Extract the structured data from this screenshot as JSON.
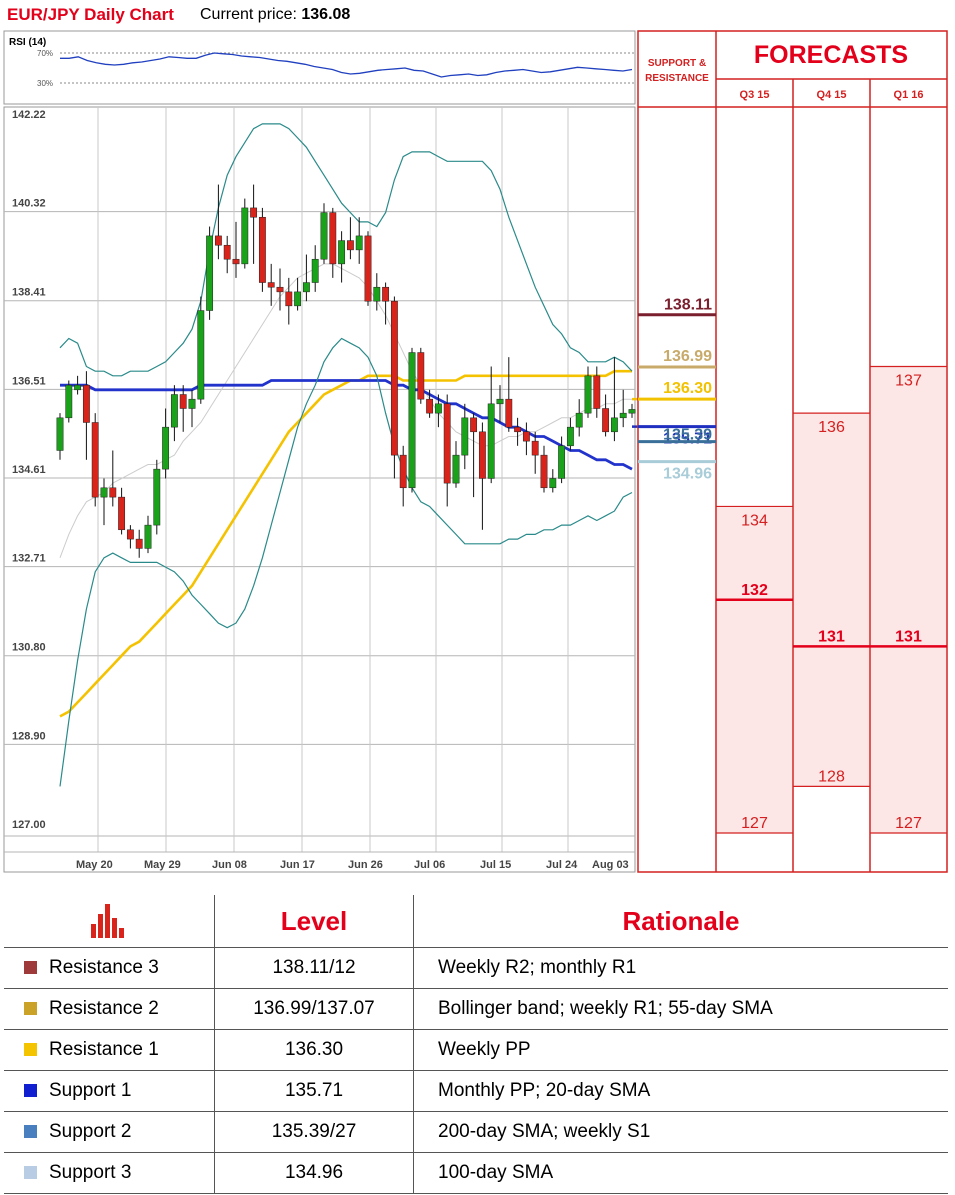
{
  "header": {
    "title": "EUR/JPY Daily Chart",
    "price_label": "Current price:",
    "price_value": "136.08"
  },
  "colors": {
    "brand_red": "#e3001b",
    "bull": "#1aa31a",
    "bear": "#d9241c",
    "sma200": "#f5c200",
    "sma20": "#2233cc",
    "bollinger": "#2a8a8a",
    "grid": "#b5b5b5",
    "forecast_fill": "#fde6e6"
  },
  "rsi": {
    "label": "RSI (14)",
    "levels": [
      "70%",
      "30%"
    ],
    "values": [
      63,
      63,
      65,
      60,
      57,
      55,
      54,
      55,
      57,
      58,
      60,
      62,
      65,
      64,
      63,
      63,
      67,
      70,
      69,
      68,
      66,
      65,
      64,
      62,
      60,
      59,
      57,
      55,
      52,
      50,
      48,
      44,
      42,
      43,
      45,
      47,
      48,
      49,
      50,
      47,
      46,
      42,
      38,
      40,
      41,
      42,
      40,
      41,
      44,
      46,
      47,
      48,
      46,
      44,
      45,
      47,
      49,
      51,
      50,
      49,
      48,
      47,
      46,
      48
    ]
  },
  "chart_data": {
    "type": "candlestick",
    "title": "EUR/JPY Daily Chart",
    "y_ticks": [
      "142.22",
      "140.32",
      "138.41",
      "136.51",
      "134.61",
      "132.71",
      "130.80",
      "128.90",
      "127.00"
    ],
    "ylim": [
      127.0,
      142.22
    ],
    "x_ticks": [
      "May 20",
      "May 29",
      "Jun 08",
      "Jun 17",
      "Jun 26",
      "Jul 06",
      "Jul 15",
      "Jul 24",
      "Aug 03"
    ],
    "candles": [
      [
        135.2,
        135.9,
        136.0,
        135.0
      ],
      [
        135.9,
        136.6,
        136.7,
        135.8
      ],
      [
        136.5,
        136.6,
        136.8,
        136.4
      ],
      [
        136.6,
        135.8,
        136.9,
        135.0
      ],
      [
        135.8,
        134.2,
        136.0,
        134.0
      ],
      [
        134.2,
        134.4,
        134.6,
        133.6
      ],
      [
        134.4,
        134.2,
        135.2,
        134.0
      ],
      [
        134.2,
        133.5,
        134.4,
        133.4
      ],
      [
        133.5,
        133.3,
        133.6,
        133.1
      ],
      [
        133.3,
        133.1,
        133.5,
        132.9
      ],
      [
        133.1,
        133.6,
        133.8,
        133.0
      ],
      [
        133.6,
        134.8,
        135.0,
        133.4
      ],
      [
        134.8,
        135.7,
        136.1,
        134.6
      ],
      [
        135.7,
        136.4,
        136.6,
        135.4
      ],
      [
        136.4,
        136.1,
        136.6,
        135.6
      ],
      [
        136.1,
        136.3,
        136.5,
        135.7
      ],
      [
        136.3,
        138.2,
        138.5,
        136.2
      ],
      [
        138.2,
        139.8,
        140.0,
        138.0
      ],
      [
        139.8,
        139.6,
        140.9,
        139.3
      ],
      [
        139.6,
        139.3,
        139.8,
        139.0
      ],
      [
        139.3,
        139.2,
        140.1,
        138.9
      ],
      [
        139.2,
        140.4,
        140.6,
        139.1
      ],
      [
        140.4,
        140.2,
        140.9,
        139.2
      ],
      [
        140.2,
        138.8,
        140.4,
        138.6
      ],
      [
        138.8,
        138.7,
        139.2,
        138.3
      ],
      [
        138.7,
        138.6,
        139.1,
        138.2
      ],
      [
        138.6,
        138.3,
        138.9,
        137.9
      ],
      [
        138.3,
        138.6,
        138.9,
        138.2
      ],
      [
        138.6,
        138.8,
        139.4,
        138.4
      ],
      [
        138.8,
        139.3,
        139.6,
        138.6
      ],
      [
        139.3,
        140.3,
        140.5,
        139.2
      ],
      [
        140.3,
        139.2,
        140.4,
        138.9
      ],
      [
        139.2,
        139.7,
        139.9,
        138.8
      ],
      [
        139.7,
        139.5,
        140.2,
        139.3
      ],
      [
        139.5,
        139.8,
        140.2,
        139.2
      ],
      [
        139.8,
        138.4,
        139.9,
        138.3
      ],
      [
        138.4,
        138.7,
        139.0,
        138.2
      ],
      [
        138.7,
        138.4,
        138.8,
        137.9
      ],
      [
        138.4,
        135.1,
        138.5,
        134.6
      ],
      [
        135.1,
        134.4,
        135.3,
        134.0
      ],
      [
        134.4,
        137.3,
        137.4,
        134.3
      ],
      [
        137.3,
        136.3,
        137.4,
        136.2
      ],
      [
        136.3,
        136.0,
        136.5,
        135.9
      ],
      [
        136.0,
        136.2,
        136.4,
        135.7
      ],
      [
        136.2,
        134.5,
        136.4,
        134.0
      ],
      [
        134.5,
        135.1,
        135.4,
        134.4
      ],
      [
        135.1,
        135.9,
        136.2,
        134.8
      ],
      [
        135.9,
        135.6,
        136.0,
        134.2
      ],
      [
        135.6,
        134.6,
        135.8,
        133.5
      ],
      [
        134.6,
        136.2,
        137.0,
        134.5
      ],
      [
        136.2,
        136.3,
        136.6,
        135.8
      ],
      [
        136.3,
        135.7,
        137.2,
        135.6
      ],
      [
        135.7,
        135.6,
        135.9,
        135.3
      ],
      [
        135.6,
        135.4,
        135.8,
        135.1
      ],
      [
        135.4,
        135.1,
        135.6,
        134.7
      ],
      [
        135.1,
        134.4,
        135.3,
        134.3
      ],
      [
        134.4,
        134.6,
        134.8,
        134.3
      ],
      [
        134.6,
        135.3,
        135.5,
        134.5
      ],
      [
        135.3,
        135.7,
        135.9,
        135.2
      ],
      [
        135.7,
        136.0,
        136.3,
        135.5
      ],
      [
        136.0,
        136.8,
        137.0,
        135.9
      ],
      [
        136.8,
        136.1,
        137.0,
        135.9
      ],
      [
        136.1,
        135.6,
        136.4,
        135.5
      ],
      [
        135.6,
        135.9,
        137.2,
        135.4
      ],
      [
        135.9,
        136.0,
        136.5,
        135.7
      ],
      [
        136.0,
        136.08,
        136.2,
        135.9
      ]
    ],
    "series": [
      {
        "values": [
          132.9,
          133.4,
          133.8,
          134.1,
          134.2,
          134.3,
          134.5,
          134.6,
          134.7,
          134.8,
          134.9,
          134.9,
          135.0,
          135.1,
          135.4,
          135.6,
          135.8,
          136.1,
          136.4,
          136.7,
          137.0,
          137.3,
          137.6,
          137.9,
          138.2,
          138.5,
          138.7,
          138.9,
          139.0,
          139.1,
          139.2,
          139.2,
          139.1,
          139.0,
          138.9,
          138.7,
          138.4,
          138.1,
          137.7,
          137.3,
          136.9,
          136.6,
          136.3,
          136.0,
          135.8,
          135.6,
          135.5,
          135.4,
          135.3,
          135.3,
          135.4,
          135.5,
          135.5,
          135.6,
          135.6,
          135.7,
          135.8,
          135.9,
          135.9,
          136.0,
          136.1,
          136.1,
          136.2,
          136.2,
          136.3,
          136.3
        ]
      },
      {
        "values": [
          129.5,
          129.6,
          129.8,
          130.0,
          130.2,
          130.4,
          130.6,
          130.8,
          131.0,
          131.1,
          131.3,
          131.5,
          131.7,
          131.9,
          132.1,
          132.3,
          132.6,
          132.9,
          133.2,
          133.5,
          133.8,
          134.1,
          134.4,
          134.7,
          135.0,
          135.3,
          135.6,
          135.8,
          136.0,
          136.2,
          136.4,
          136.5,
          136.6,
          136.7,
          136.7,
          136.8,
          136.8,
          136.8,
          136.8,
          136.7,
          136.7,
          136.7,
          136.7,
          136.7,
          136.7,
          136.7,
          136.8,
          136.8,
          136.8,
          136.8,
          136.8,
          136.8,
          136.8,
          136.8,
          136.8,
          136.8,
          136.8,
          136.8,
          136.8,
          136.8,
          136.8,
          136.8,
          136.8,
          136.9,
          136.9,
          136.9
        ]
      },
      {
        "values": [
          136.6,
          136.6,
          136.6,
          136.6,
          136.5,
          136.5,
          136.5,
          136.5,
          136.5,
          136.5,
          136.5,
          136.5,
          136.5,
          136.5,
          136.5,
          136.5,
          136.6,
          136.6,
          136.6,
          136.6,
          136.6,
          136.6,
          136.6,
          136.6,
          136.7,
          136.7,
          136.7,
          136.7,
          136.7,
          136.7,
          136.7,
          136.7,
          136.7,
          136.7,
          136.7,
          136.7,
          136.7,
          136.7,
          136.6,
          136.6,
          136.5,
          136.5,
          136.4,
          136.3,
          136.2,
          136.2,
          136.1,
          136.0,
          135.9,
          135.9,
          135.8,
          135.7,
          135.7,
          135.6,
          135.5,
          135.5,
          135.4,
          135.3,
          135.2,
          135.2,
          135.1,
          135.0,
          135.0,
          134.9,
          134.9,
          134.8
        ]
      },
      {
        "values": [
          137.4,
          137.6,
          137.5,
          137.0,
          136.9,
          136.9,
          136.8,
          136.8,
          136.9,
          136.9,
          136.9,
          137.0,
          137.1,
          137.3,
          137.5,
          137.8,
          138.4,
          139.5,
          140.4,
          141.1,
          141.5,
          141.8,
          142.1,
          142.2,
          142.2,
          142.2,
          142.1,
          141.9,
          141.7,
          141.4,
          141.1,
          140.8,
          140.5,
          140.3,
          140.1,
          140.1,
          140.0,
          140.3,
          141.0,
          141.5,
          141.6,
          141.6,
          141.6,
          141.5,
          141.4,
          141.4,
          141.4,
          141.4,
          141.4,
          141.2,
          140.8,
          140.2,
          139.7,
          139.2,
          138.7,
          138.3,
          137.9,
          137.7,
          137.4,
          137.3,
          137.1,
          137.1,
          137.1,
          137.2,
          137.1,
          136.9
        ]
      },
      {
        "values": [
          128.0,
          129.4,
          130.7,
          131.8,
          132.6,
          132.9,
          133.0,
          132.9,
          132.8,
          132.8,
          132.8,
          132.8,
          132.7,
          132.6,
          132.4,
          132.1,
          131.9,
          131.7,
          131.5,
          131.4,
          131.5,
          131.8,
          132.3,
          132.9,
          133.6,
          134.3,
          135.0,
          135.7,
          136.2,
          136.6,
          137.1,
          137.4,
          137.6,
          137.5,
          137.4,
          137.2,
          136.8,
          136.0,
          135.3,
          134.8,
          134.4,
          134.1,
          134.0,
          133.8,
          133.6,
          133.4,
          133.2,
          133.2,
          133.2,
          133.2,
          133.2,
          133.3,
          133.3,
          133.4,
          133.4,
          133.5,
          133.5,
          133.6,
          133.6,
          133.7,
          133.8,
          133.7,
          133.8,
          133.9,
          134.2,
          134.3
        ]
      }
    ]
  },
  "sr_panel": {
    "header": "SUPPORT & RESISTANCE",
    "levels": [
      {
        "value": "138.11",
        "price": 138.11,
        "color": "#7a1f2e"
      },
      {
        "value": "136.99",
        "price": 136.99,
        "color": "#c8aa6a"
      },
      {
        "value": "136.30",
        "price": 136.3,
        "color": "#f2c200"
      },
      {
        "value": "135.71",
        "price": 135.71,
        "color": "#1f2fc0"
      },
      {
        "value": "135.39",
        "price": 135.39,
        "color": "#3a6f9a"
      },
      {
        "value": "134.96",
        "price": 134.96,
        "color": "#a8ccd8"
      }
    ]
  },
  "forecasts": {
    "title": "FORECASTS",
    "quarters": [
      {
        "label": "Q3 15",
        "top": 134,
        "mid": 132,
        "bottom": 127,
        "top_label": "134",
        "mid_label": "132",
        "bottom_label": "127"
      },
      {
        "label": "Q4 15",
        "top": 136,
        "mid": 131,
        "bottom": 128,
        "top_label": "136",
        "mid_label": "131",
        "bottom_label": "128"
      },
      {
        "label": "Q1 16",
        "top": 137,
        "mid": 131,
        "bottom": 127,
        "top_label": "137",
        "mid_label": "131",
        "bottom_label": "127"
      }
    ]
  },
  "levels_table": {
    "headers": [
      "Level",
      "Rationale"
    ],
    "rows": [
      {
        "name": "Resistance 3",
        "level": "138.11/12",
        "rationale": "Weekly R2; monthly R1",
        "color": "#9e3a3a"
      },
      {
        "name": "Resistance 2",
        "level": "136.99/137.07",
        "rationale": "Bollinger band; weekly R1; 55-day SMA",
        "color": "#c9a227"
      },
      {
        "name": "Resistance 1",
        "level": "136.30",
        "rationale": "Weekly PP",
        "color": "#f5c400"
      },
      {
        "name": "Support 1",
        "level": "135.71",
        "rationale": "Monthly PP; 20-day SMA",
        "color": "#1020d0"
      },
      {
        "name": "Support 2",
        "level": "135.39/27",
        "rationale": "200-day SMA; weekly S1",
        "color": "#4a7fbf"
      },
      {
        "name": "Support 3",
        "level": "134.96",
        "rationale": "100-day SMA",
        "color": "#b8cce4"
      }
    ]
  }
}
